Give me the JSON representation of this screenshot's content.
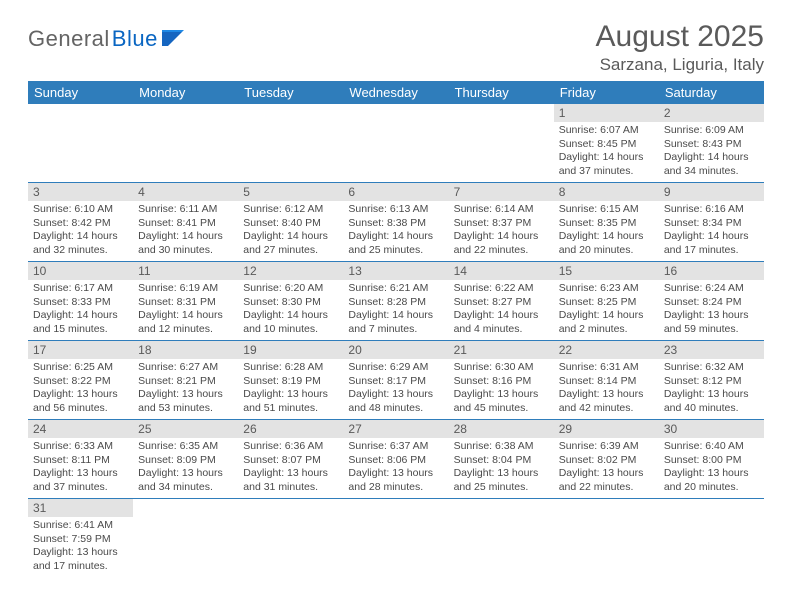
{
  "logo": {
    "general": "General",
    "blue": "Blue"
  },
  "title": "August 2025",
  "location": "Sarzana, Liguria, Italy",
  "colors": {
    "header_bg": "#2f7dbb",
    "header_text": "#ffffff",
    "daynum_bg": "#e3e3e3",
    "cell_border": "#2f7dbb",
    "text": "#4a4a4a",
    "title_text": "#5a5a5a",
    "logo_general": "#646464",
    "logo_blue": "#0a66c2"
  },
  "day_headers": [
    "Sunday",
    "Monday",
    "Tuesday",
    "Wednesday",
    "Thursday",
    "Friday",
    "Saturday"
  ],
  "weeks": [
    [
      null,
      null,
      null,
      null,
      null,
      {
        "n": "1",
        "sr": "6:07 AM",
        "ss": "8:45 PM",
        "dl": "14 hours and 37 minutes."
      },
      {
        "n": "2",
        "sr": "6:09 AM",
        "ss": "8:43 PM",
        "dl": "14 hours and 34 minutes."
      }
    ],
    [
      {
        "n": "3",
        "sr": "6:10 AM",
        "ss": "8:42 PM",
        "dl": "14 hours and 32 minutes."
      },
      {
        "n": "4",
        "sr": "6:11 AM",
        "ss": "8:41 PM",
        "dl": "14 hours and 30 minutes."
      },
      {
        "n": "5",
        "sr": "6:12 AM",
        "ss": "8:40 PM",
        "dl": "14 hours and 27 minutes."
      },
      {
        "n": "6",
        "sr": "6:13 AM",
        "ss": "8:38 PM",
        "dl": "14 hours and 25 minutes."
      },
      {
        "n": "7",
        "sr": "6:14 AM",
        "ss": "8:37 PM",
        "dl": "14 hours and 22 minutes."
      },
      {
        "n": "8",
        "sr": "6:15 AM",
        "ss": "8:35 PM",
        "dl": "14 hours and 20 minutes."
      },
      {
        "n": "9",
        "sr": "6:16 AM",
        "ss": "8:34 PM",
        "dl": "14 hours and 17 minutes."
      }
    ],
    [
      {
        "n": "10",
        "sr": "6:17 AM",
        "ss": "8:33 PM",
        "dl": "14 hours and 15 minutes."
      },
      {
        "n": "11",
        "sr": "6:19 AM",
        "ss": "8:31 PM",
        "dl": "14 hours and 12 minutes."
      },
      {
        "n": "12",
        "sr": "6:20 AM",
        "ss": "8:30 PM",
        "dl": "14 hours and 10 minutes."
      },
      {
        "n": "13",
        "sr": "6:21 AM",
        "ss": "8:28 PM",
        "dl": "14 hours and 7 minutes."
      },
      {
        "n": "14",
        "sr": "6:22 AM",
        "ss": "8:27 PM",
        "dl": "14 hours and 4 minutes."
      },
      {
        "n": "15",
        "sr": "6:23 AM",
        "ss": "8:25 PM",
        "dl": "14 hours and 2 minutes."
      },
      {
        "n": "16",
        "sr": "6:24 AM",
        "ss": "8:24 PM",
        "dl": "13 hours and 59 minutes."
      }
    ],
    [
      {
        "n": "17",
        "sr": "6:25 AM",
        "ss": "8:22 PM",
        "dl": "13 hours and 56 minutes."
      },
      {
        "n": "18",
        "sr": "6:27 AM",
        "ss": "8:21 PM",
        "dl": "13 hours and 53 minutes."
      },
      {
        "n": "19",
        "sr": "6:28 AM",
        "ss": "8:19 PM",
        "dl": "13 hours and 51 minutes."
      },
      {
        "n": "20",
        "sr": "6:29 AM",
        "ss": "8:17 PM",
        "dl": "13 hours and 48 minutes."
      },
      {
        "n": "21",
        "sr": "6:30 AM",
        "ss": "8:16 PM",
        "dl": "13 hours and 45 minutes."
      },
      {
        "n": "22",
        "sr": "6:31 AM",
        "ss": "8:14 PM",
        "dl": "13 hours and 42 minutes."
      },
      {
        "n": "23",
        "sr": "6:32 AM",
        "ss": "8:12 PM",
        "dl": "13 hours and 40 minutes."
      }
    ],
    [
      {
        "n": "24",
        "sr": "6:33 AM",
        "ss": "8:11 PM",
        "dl": "13 hours and 37 minutes."
      },
      {
        "n": "25",
        "sr": "6:35 AM",
        "ss": "8:09 PM",
        "dl": "13 hours and 34 minutes."
      },
      {
        "n": "26",
        "sr": "6:36 AM",
        "ss": "8:07 PM",
        "dl": "13 hours and 31 minutes."
      },
      {
        "n": "27",
        "sr": "6:37 AM",
        "ss": "8:06 PM",
        "dl": "13 hours and 28 minutes."
      },
      {
        "n": "28",
        "sr": "6:38 AM",
        "ss": "8:04 PM",
        "dl": "13 hours and 25 minutes."
      },
      {
        "n": "29",
        "sr": "6:39 AM",
        "ss": "8:02 PM",
        "dl": "13 hours and 22 minutes."
      },
      {
        "n": "30",
        "sr": "6:40 AM",
        "ss": "8:00 PM",
        "dl": "13 hours and 20 minutes."
      }
    ],
    [
      {
        "n": "31",
        "sr": "6:41 AM",
        "ss": "7:59 PM",
        "dl": "13 hours and 17 minutes."
      },
      null,
      null,
      null,
      null,
      null,
      null
    ]
  ],
  "labels": {
    "sunrise": "Sunrise:",
    "sunset": "Sunset:",
    "daylight": "Daylight:"
  }
}
